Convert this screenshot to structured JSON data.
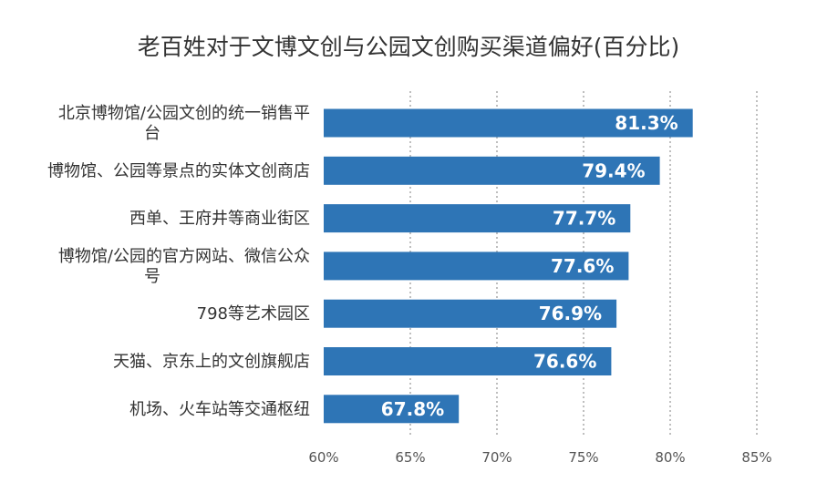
{
  "chart_data": {
    "type": "bar",
    "orientation": "horizontal",
    "title": "老百姓对于文博文创与公园文创购买渠道偏好(百分比)",
    "categories": [
      "北京博物馆/公园文创的统一销售平台",
      "博物馆、公园等景点的实体文创商店",
      "西单、王府井等商业街区",
      "博物馆/公园的官方网站、微信公众号",
      "798等艺术园区",
      "天猫、京东上的文创旗舰店",
      "机场、火车站等交通枢纽"
    ],
    "category_lines": [
      [
        "北京博物馆/公园文创的统一销售平",
        "台"
      ],
      [
        "博物馆、公园等景点的实体文创商店"
      ],
      [
        "西单、王府井等商业街区"
      ],
      [
        "博物馆/公园的官方网站、微信公众",
        "号"
      ],
      [
        "798等艺术园区"
      ],
      [
        "天猫、京东上的文创旗舰店"
      ],
      [
        "机场、火车站等交通枢纽"
      ]
    ],
    "values": [
      81.3,
      79.4,
      77.7,
      77.6,
      76.9,
      76.6,
      67.8
    ],
    "value_labels": [
      "81.3%",
      "79.4%",
      "77.7%",
      "77.6%",
      "76.9%",
      "76.6%",
      "67.8%"
    ],
    "xlim": [
      60,
      85
    ],
    "xticks": [
      60,
      65,
      70,
      75,
      80,
      85
    ],
    "xtick_labels": [
      "60%",
      "65%",
      "70%",
      "75%",
      "80%",
      "85%"
    ],
    "grid": "vertical dashed",
    "legend": "none",
    "colors": {
      "bar": "#2E75B6",
      "grid": "#BFBFBF",
      "value_text": "#FFFFFF"
    }
  }
}
